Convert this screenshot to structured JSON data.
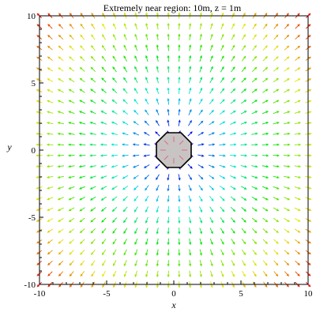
{
  "chart_data": {
    "type": "vector_field",
    "title": "Extremely near region: 10m, z = 1m",
    "xlabel": "x",
    "ylabel": "y",
    "xlim": [
      -10,
      10
    ],
    "ylim": [
      -10,
      10
    ],
    "x_ticks": [
      -10,
      -5,
      0,
      5,
      10
    ],
    "y_ticks": [
      -10,
      -5,
      0,
      5,
      10
    ],
    "x_tick_labels": [
      "-10",
      "-5",
      "0",
      "5",
      "10"
    ],
    "y_tick_labels": [
      "-10",
      "-5",
      "0",
      "5",
      "10"
    ],
    "field_direction": "radial-outward",
    "grid_step": 0.8,
    "color_scale": "rainbow by distance (purple center → red corners)",
    "source_disk": {
      "center": [
        0,
        0
      ],
      "radius": 1.4,
      "fill": "#c8c4c4",
      "stroke": "#000000"
    },
    "grid": false,
    "legend": "none"
  }
}
